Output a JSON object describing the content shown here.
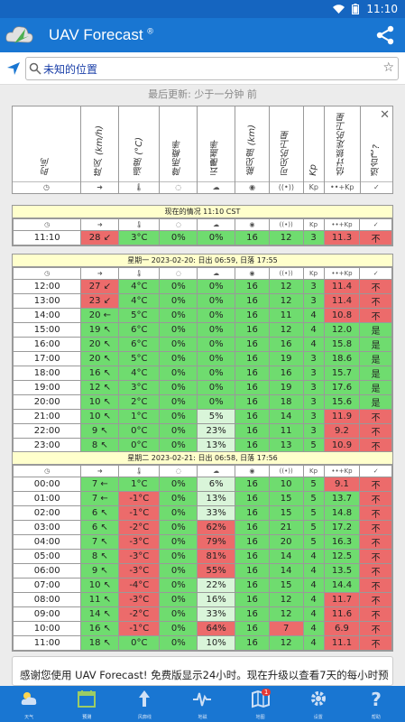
{
  "status": {
    "time": "11:10"
  },
  "app": {
    "title": "UAV Forecast",
    "reg": "®"
  },
  "search": {
    "placeholder": "未知的位置"
  },
  "updated": "最后更新: 少于一分钟 前",
  "columns": [
    "时间",
    "阵风 (km/h)",
    "温度 (°C)",
    "降雨概率",
    "云覆盖率",
    "能见度 (km)",
    "可见的卫星",
    "Kp",
    "估计锁定的卫星",
    "适合飞?"
  ],
  "col_icons": [
    "◷",
    "➜",
    "🌡",
    "◌",
    "☁",
    "◉",
    "((•))",
    "Kp",
    "••+Kp",
    "✓"
  ],
  "current": {
    "title": "现在的情况 11:10 CST",
    "row": [
      "11:10",
      "28 ↙",
      "3°C",
      "0%",
      "0%",
      "16",
      "12",
      "3",
      "11.3",
      "不"
    ]
  },
  "day1": {
    "title": "星期一 2023-02-20: 日出 06:59, 日落 17:55",
    "rows": [
      [
        "12:00",
        "27 ↙",
        "4°C",
        "0%",
        "0%",
        "16",
        "12",
        "3",
        "11.4",
        "不"
      ],
      [
        "13:00",
        "23 ↙",
        "4°C",
        "0%",
        "0%",
        "16",
        "12",
        "3",
        "11.4",
        "不"
      ],
      [
        "14:00",
        "20 ←",
        "5°C",
        "0%",
        "0%",
        "16",
        "11",
        "4",
        "10.8",
        "不"
      ],
      [
        "15:00",
        "19 ↖",
        "6°C",
        "0%",
        "0%",
        "16",
        "12",
        "4",
        "12.0",
        "是"
      ],
      [
        "16:00",
        "20 ↖",
        "6°C",
        "0%",
        "0%",
        "16",
        "16",
        "4",
        "15.8",
        "是"
      ],
      [
        "17:00",
        "20 ↖",
        "5°C",
        "0%",
        "0%",
        "16",
        "19",
        "3",
        "18.6",
        "是"
      ],
      [
        "18:00",
        "16 ↖",
        "4°C",
        "0%",
        "0%",
        "16",
        "16",
        "3",
        "15.7",
        "是"
      ],
      [
        "19:00",
        "12 ↖",
        "3°C",
        "0%",
        "0%",
        "16",
        "19",
        "3",
        "17.6",
        "是"
      ],
      [
        "20:00",
        "10 ↖",
        "2°C",
        "0%",
        "0%",
        "16",
        "18",
        "3",
        "15.6",
        "是"
      ],
      [
        "21:00",
        "10 ↖",
        "1°C",
        "0%",
        "5%",
        "16",
        "14",
        "3",
        "11.9",
        "不"
      ],
      [
        "22:00",
        "9 ↖",
        "0°C",
        "0%",
        "23%",
        "16",
        "11",
        "3",
        "9.2",
        "不"
      ],
      [
        "23:00",
        "8 ↖",
        "0°C",
        "0%",
        "13%",
        "16",
        "13",
        "5",
        "10.9",
        "不"
      ]
    ]
  },
  "day2": {
    "title": "星期二 2023-02-21: 日出 06:58, 日落 17:56",
    "rows": [
      [
        "00:00",
        "7 ←",
        "1°C",
        "0%",
        "6%",
        "16",
        "10",
        "5",
        "9.1",
        "不"
      ],
      [
        "01:00",
        "7 ←",
        "-1°C",
        "0%",
        "13%",
        "16",
        "15",
        "5",
        "13.7",
        "不"
      ],
      [
        "02:00",
        "6 ↖",
        "-1°C",
        "0%",
        "33%",
        "16",
        "15",
        "5",
        "14.8",
        "不"
      ],
      [
        "03:00",
        "6 ↖",
        "-2°C",
        "0%",
        "62%",
        "16",
        "21",
        "5",
        "17.2",
        "不"
      ],
      [
        "04:00",
        "7 ↖",
        "-3°C",
        "0%",
        "79%",
        "16",
        "20",
        "5",
        "16.3",
        "不"
      ],
      [
        "05:00",
        "8 ↖",
        "-3°C",
        "0%",
        "81%",
        "16",
        "14",
        "4",
        "12.5",
        "不"
      ],
      [
        "06:00",
        "9 ↖",
        "-3°C",
        "0%",
        "55%",
        "16",
        "14",
        "4",
        "13.5",
        "不"
      ],
      [
        "07:00",
        "10 ↖",
        "-4°C",
        "0%",
        "22%",
        "16",
        "15",
        "4",
        "14.4",
        "不"
      ],
      [
        "08:00",
        "11 ↖",
        "-3°C",
        "0%",
        "16%",
        "16",
        "12",
        "4",
        "11.7",
        "不"
      ],
      [
        "09:00",
        "14 ↖",
        "-2°C",
        "0%",
        "33%",
        "16",
        "12",
        "4",
        "11.6",
        "不"
      ],
      [
        "10:00",
        "16 ↖",
        "-1°C",
        "0%",
        "64%",
        "16",
        "7",
        "4",
        "6.9",
        "不"
      ],
      [
        "11:00",
        "18 ↖",
        "0°C",
        "0%",
        "10%",
        "16",
        "12",
        "4",
        "11.1",
        "不"
      ]
    ]
  },
  "banner": "感谢您使用 UAV Forecast! 免费版显示24小时。现在升级以查看7天的每小时预",
  "nav": [
    {
      "label": "天气",
      "icon": "weather-icon"
    },
    {
      "label": "预测",
      "icon": "calendar-icon"
    },
    {
      "label": "风廓线",
      "icon": "wind-arrow-icon"
    },
    {
      "label": "地磁",
      "icon": "pulse-icon"
    },
    {
      "label": "地图",
      "icon": "map-icon",
      "badge": "1"
    },
    {
      "label": "设置",
      "icon": "gear-icon"
    },
    {
      "label": "帮助",
      "icon": "help-icon"
    }
  ]
}
